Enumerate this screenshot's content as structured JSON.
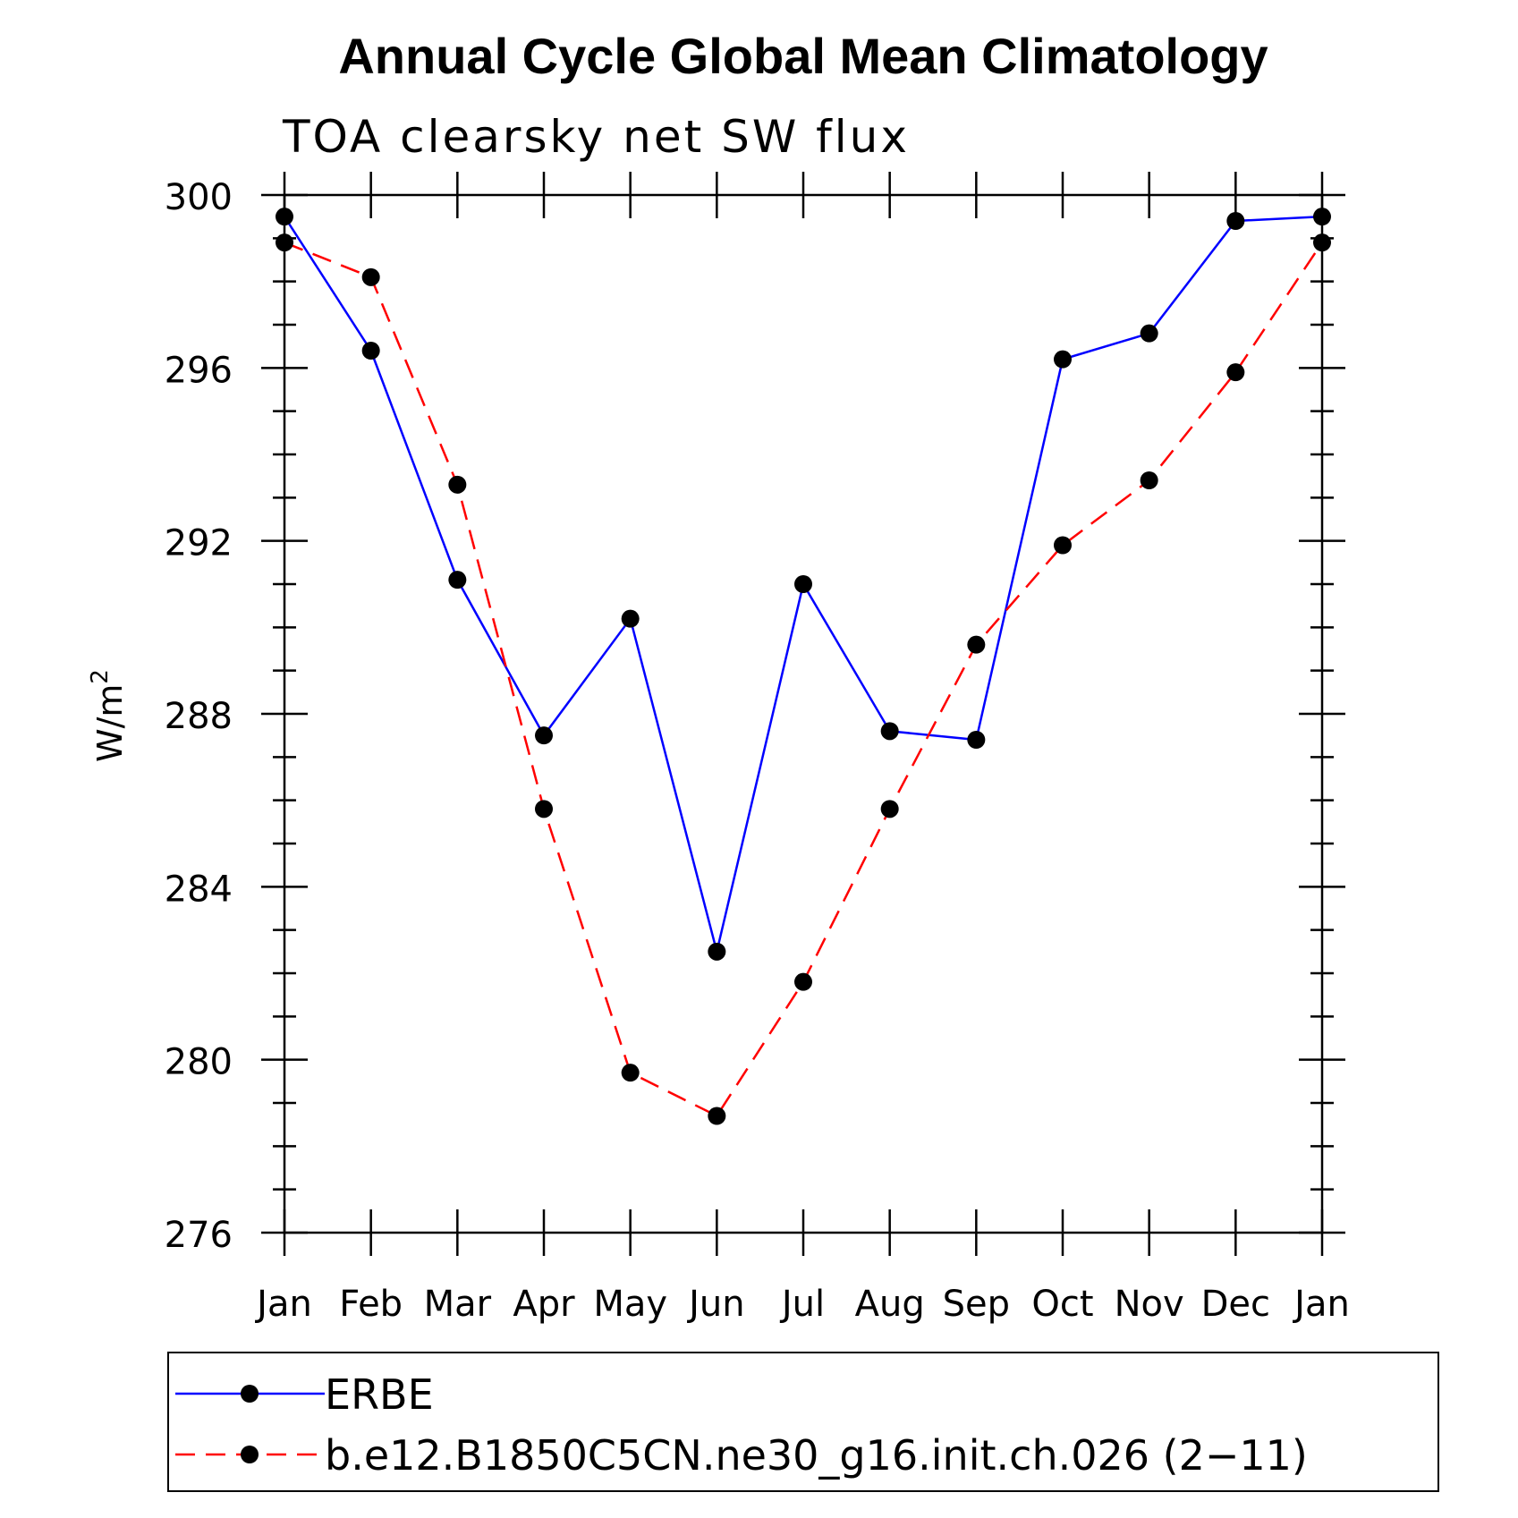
{
  "chart_data": {
    "type": "line",
    "title": "Annual Cycle Global Mean Climatology",
    "subtitle": "TOA clearsky net SW flux",
    "ylabel": "W/m",
    "ylabel_sup": "2",
    "xlabel": "",
    "categories": [
      "Jan",
      "Feb",
      "Mar",
      "Apr",
      "May",
      "Jun",
      "Jul",
      "Aug",
      "Sep",
      "Oct",
      "Nov",
      "Dec",
      "Jan"
    ],
    "ylim": [
      276,
      300
    ],
    "yticks": [
      276,
      280,
      284,
      288,
      292,
      296,
      300
    ],
    "ytick_labels": [
      "276",
      "280",
      "284",
      "288",
      "292",
      "296",
      "300"
    ],
    "legend_position": "bottom",
    "series": [
      {
        "name": "ERBE",
        "color": "#0000ff",
        "line_style": "solid",
        "values": [
          299.5,
          296.4,
          291.1,
          287.5,
          290.2,
          282.5,
          291.0,
          287.6,
          287.4,
          296.2,
          296.8,
          299.4,
          299.5
        ]
      },
      {
        "name": "b.e12.B1850C5CN.ne30_g16.init.ch.026 (2−11)",
        "color": "#ff0000",
        "line_style": "dashed",
        "values": [
          298.9,
          298.1,
          293.3,
          285.8,
          279.7,
          278.7,
          281.8,
          285.8,
          289.6,
          291.9,
          293.4,
          295.9,
          298.9
        ]
      }
    ]
  }
}
